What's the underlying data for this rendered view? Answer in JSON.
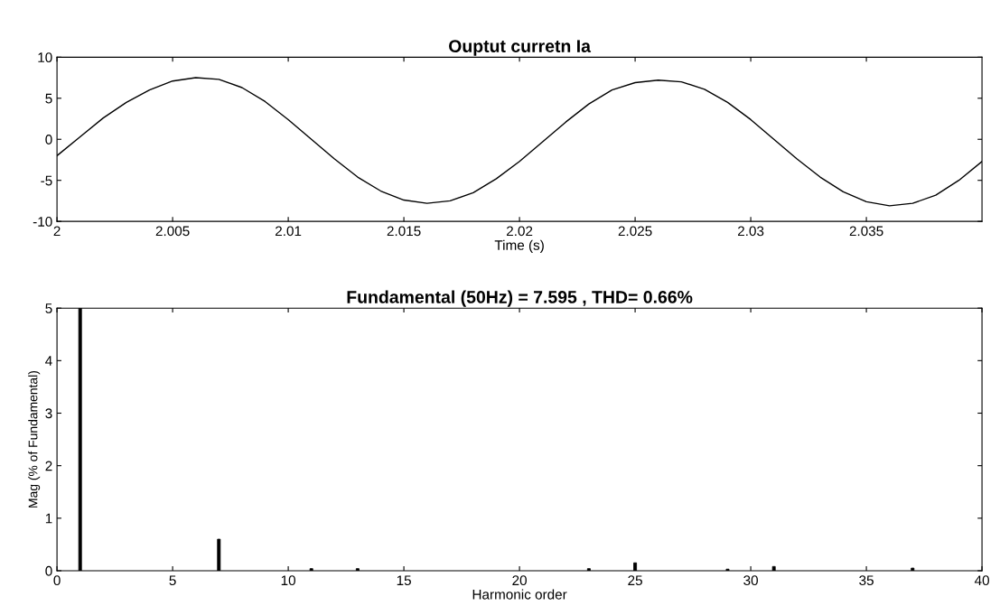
{
  "chart_data": [
    {
      "type": "line",
      "title": "Ouptut curretn Ia",
      "xlabel": "Time (s)",
      "xlim": [
        2,
        2.04
      ],
      "ylim": [
        -10,
        10
      ],
      "xticks": [
        2,
        2.005,
        2.01,
        2.015,
        2.02,
        2.025,
        2.03,
        2.035
      ],
      "yticks": [
        -10,
        -5,
        0,
        5,
        10
      ],
      "grid": false,
      "legend": false,
      "x": [
        2.0,
        2.001,
        2.002,
        2.003,
        2.004,
        2.005,
        2.006,
        2.007,
        2.008,
        2.009,
        2.01,
        2.011,
        2.012,
        2.013,
        2.014,
        2.015,
        2.016,
        2.017,
        2.018,
        2.019,
        2.02,
        2.021,
        2.022,
        2.023,
        2.024,
        2.025,
        2.026,
        2.027,
        2.028,
        2.029,
        2.03,
        2.031,
        2.032,
        2.033,
        2.034,
        2.035,
        2.036,
        2.037,
        2.038,
        2.039,
        2.04
      ],
      "series": [
        {
          "color": "#000000",
          "values": [
            -2.0,
            0.3,
            2.6,
            4.5,
            6.0,
            7.1,
            7.5,
            7.3,
            6.3,
            4.6,
            2.4,
            0.0,
            -2.4,
            -4.6,
            -6.3,
            -7.4,
            -7.8,
            -7.5,
            -6.5,
            -4.8,
            -2.7,
            -0.3,
            2.1,
            4.3,
            6.0,
            6.9,
            7.2,
            7.0,
            6.1,
            4.5,
            2.4,
            0.0,
            -2.4,
            -4.6,
            -6.4,
            -7.6,
            -8.1,
            -7.8,
            -6.8,
            -5.0,
            -2.7
          ]
        }
      ]
    },
    {
      "type": "bar",
      "title": "Fundamental (50Hz) = 7.595 , THD= 0.66%",
      "xlabel": "Harmonic order",
      "ylabel": "Mag (% of Fundamental)",
      "xlim": [
        0,
        40
      ],
      "ylim": [
        0,
        5
      ],
      "xticks": [
        0,
        5,
        10,
        15,
        20,
        25,
        30,
        35,
        40
      ],
      "yticks": [
        0,
        1,
        2,
        3,
        4,
        5
      ],
      "grid": false,
      "legend": false,
      "x": [
        1,
        7,
        11,
        13,
        23,
        25,
        29,
        31,
        37
      ],
      "series": [
        {
          "color": "#000000",
          "values": [
            5,
            0.6,
            0.04,
            0.04,
            0.04,
            0.15,
            0.03,
            0.08,
            0.05
          ]
        }
      ]
    }
  ]
}
